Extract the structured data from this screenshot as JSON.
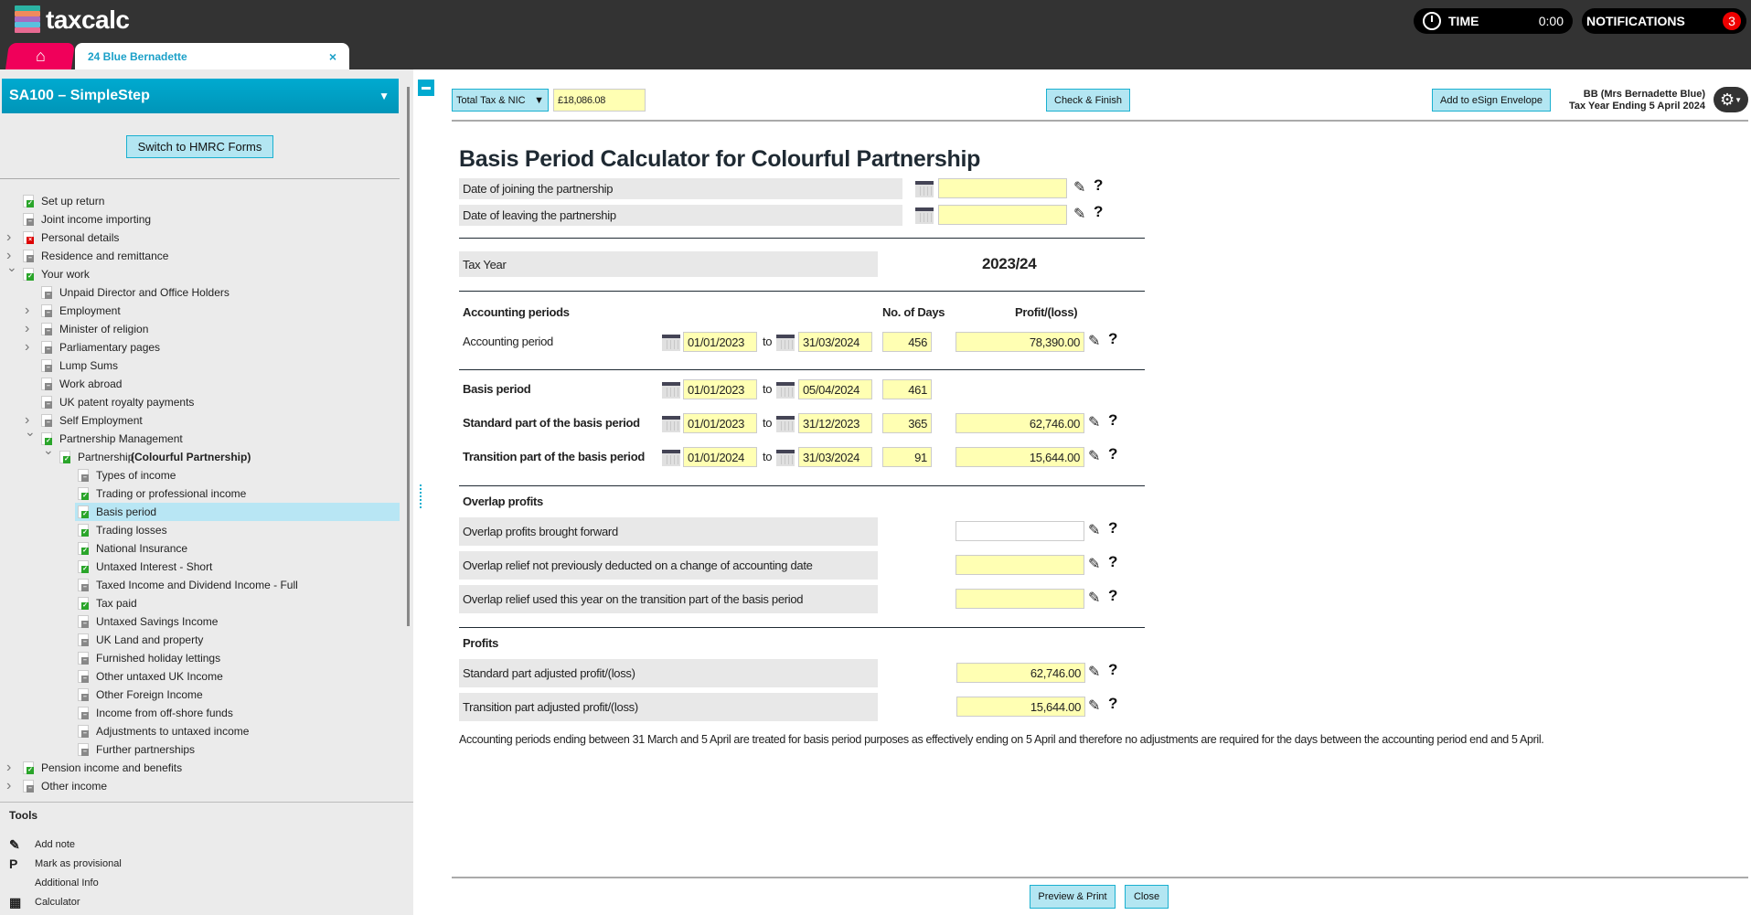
{
  "app": {
    "logo_text": "taxcalc",
    "time_label": "TIME",
    "time_value": "0:00",
    "notifications_label": "NOTIFICATIONS",
    "notifications_count": "3",
    "client_tab": "24 Blue Bernadette",
    "tab_close": "×"
  },
  "sidebar": {
    "title": "SA100 – SimpleStep",
    "switch_button": "Switch to HMRC Forms",
    "items": [
      {
        "label": "Set up return",
        "level": 0,
        "status": "ok",
        "chev": ""
      },
      {
        "label": "Joint income importing",
        "level": 0,
        "status": "none",
        "chev": ""
      },
      {
        "label": "Personal details",
        "level": 0,
        "status": "err",
        "chev": ">"
      },
      {
        "label": "Residence and remittance",
        "level": 0,
        "status": "none",
        "chev": ">"
      },
      {
        "label": "Your work",
        "level": 0,
        "status": "ok",
        "chev": "v"
      },
      {
        "label": "Unpaid Director and Office Holders",
        "level": 1,
        "status": "none",
        "chev": ""
      },
      {
        "label": "Employment",
        "level": 1,
        "status": "none",
        "chev": ">"
      },
      {
        "label": "Minister of religion",
        "level": 1,
        "status": "none",
        "chev": ">"
      },
      {
        "label": "Parliamentary pages",
        "level": 1,
        "status": "none",
        "chev": ">"
      },
      {
        "label": "Lump Sums",
        "level": 1,
        "status": "none",
        "chev": ""
      },
      {
        "label": "Work abroad",
        "level": 1,
        "status": "none",
        "chev": ""
      },
      {
        "label": "UK patent royalty payments",
        "level": 1,
        "status": "none",
        "chev": ""
      },
      {
        "label": "Self Employment",
        "level": 1,
        "status": "none",
        "chev": ">"
      },
      {
        "label": "Partnership Management",
        "level": 1,
        "status": "ok",
        "chev": "v"
      },
      {
        "label": "Partnership",
        "bold_suffix": "(Colourful Partnership)",
        "level": 2,
        "status": "ok",
        "chev": "v"
      },
      {
        "label": "Types of income",
        "level": 3,
        "status": "none",
        "chev": ""
      },
      {
        "label": "Trading or professional income",
        "level": 3,
        "status": "ok",
        "chev": ""
      },
      {
        "label": "Basis period",
        "level": 3,
        "status": "ok",
        "chev": "",
        "selected": true
      },
      {
        "label": "Trading losses",
        "level": 3,
        "status": "ok",
        "chev": ""
      },
      {
        "label": "National Insurance",
        "level": 3,
        "status": "ok",
        "chev": ""
      },
      {
        "label": "Untaxed Interest - Short",
        "level": 3,
        "status": "ok",
        "chev": ""
      },
      {
        "label": "Taxed Income and Dividend Income - Full",
        "level": 3,
        "status": "none",
        "chev": ""
      },
      {
        "label": "Tax paid",
        "level": 3,
        "status": "ok",
        "chev": ""
      },
      {
        "label": "Untaxed Savings Income",
        "level": 3,
        "status": "none",
        "chev": ""
      },
      {
        "label": "UK Land and property",
        "level": 3,
        "status": "none",
        "chev": ""
      },
      {
        "label": "Furnished holiday lettings",
        "level": 3,
        "status": "none",
        "chev": ""
      },
      {
        "label": "Other untaxed UK Income",
        "level": 3,
        "status": "none",
        "chev": ""
      },
      {
        "label": "Other Foreign Income",
        "level": 3,
        "status": "none",
        "chev": ""
      },
      {
        "label": "Income from off-shore funds",
        "level": 3,
        "status": "none",
        "chev": ""
      },
      {
        "label": "Adjustments to untaxed income",
        "level": 3,
        "status": "none",
        "chev": ""
      },
      {
        "label": "Further partnerships",
        "level": 3,
        "status": "none",
        "chev": ""
      },
      {
        "label": "Pension income and benefits",
        "level": 0,
        "status": "ok",
        "chev": ">"
      },
      {
        "label": "Other income",
        "level": 0,
        "status": "none",
        "chev": ">"
      }
    ],
    "tools_title": "Tools",
    "tools": [
      {
        "icon": "pencil-icon",
        "glyph": "✎",
        "label": "Add note"
      },
      {
        "icon": "provisional-icon",
        "glyph": "P",
        "label": "Mark as provisional"
      },
      {
        "icon": "",
        "glyph": "",
        "label": "Additional Info"
      },
      {
        "icon": "calculator-icon",
        "glyph": "▦",
        "label": "Calculator"
      }
    ]
  },
  "toolbar": {
    "total_select": "Total Tax & NIC",
    "total_value": "£18,086.08",
    "check_finish": "Check & Finish",
    "esign": "Add to eSign Envelope",
    "client_name": "BB (Mrs Bernadette Blue)",
    "tax_year_ending": "Tax Year Ending 5 April 2024"
  },
  "form": {
    "title": "Basis Period Calculator for Colourful Partnership",
    "join_label": "Date of joining the partnership",
    "join_value": "",
    "leave_label": "Date of leaving the partnership",
    "leave_value": "",
    "tax_year_label": "Tax Year",
    "tax_year_value": "2023/24",
    "acc_heading": "Accounting periods",
    "days_heading": "No. of Days",
    "profit_heading": "Profit/(loss)",
    "to": "to",
    "periods": [
      {
        "label": "Accounting period",
        "bold": false,
        "from": "01/01/2023",
        "to": "31/03/2024",
        "days": "456",
        "profit": "78,390.00"
      },
      {
        "label": "Basis period",
        "bold": true,
        "from": "01/01/2023",
        "to": "05/04/2024",
        "days": "461",
        "profit": null
      },
      {
        "label": "Standard part of the basis period",
        "bold": true,
        "from": "01/01/2023",
        "to": "31/12/2023",
        "days": "365",
        "profit": "62,746.00"
      },
      {
        "label": "Transition part of the basis period",
        "bold": true,
        "from": "01/01/2024",
        "to": "31/03/2024",
        "days": "91",
        "profit": "15,644.00"
      }
    ],
    "overlap_heading": "Overlap profits",
    "overlap": [
      {
        "label": "Overlap profits brought forward",
        "value": "",
        "white": true
      },
      {
        "label": "Overlap relief not previously deducted on a change of accounting date",
        "value": ""
      },
      {
        "label": "Overlap relief used this year on the transition part of the basis period",
        "value": ""
      }
    ],
    "profits_heading": "Profits",
    "profits": [
      {
        "label": "Standard part adjusted profit/(loss)",
        "value": "62,746.00"
      },
      {
        "label": "Transition part adjusted profit/(loss)",
        "value": "15,644.00"
      }
    ],
    "note": "Accounting periods ending between 31 March and 5 April are treated for basis period purposes as effectively ending on 5 April and therefore no adjustments are required for the days between the accounting period end and 5 April."
  },
  "footer": {
    "preview_print": "Preview & Print",
    "close": "Close"
  }
}
